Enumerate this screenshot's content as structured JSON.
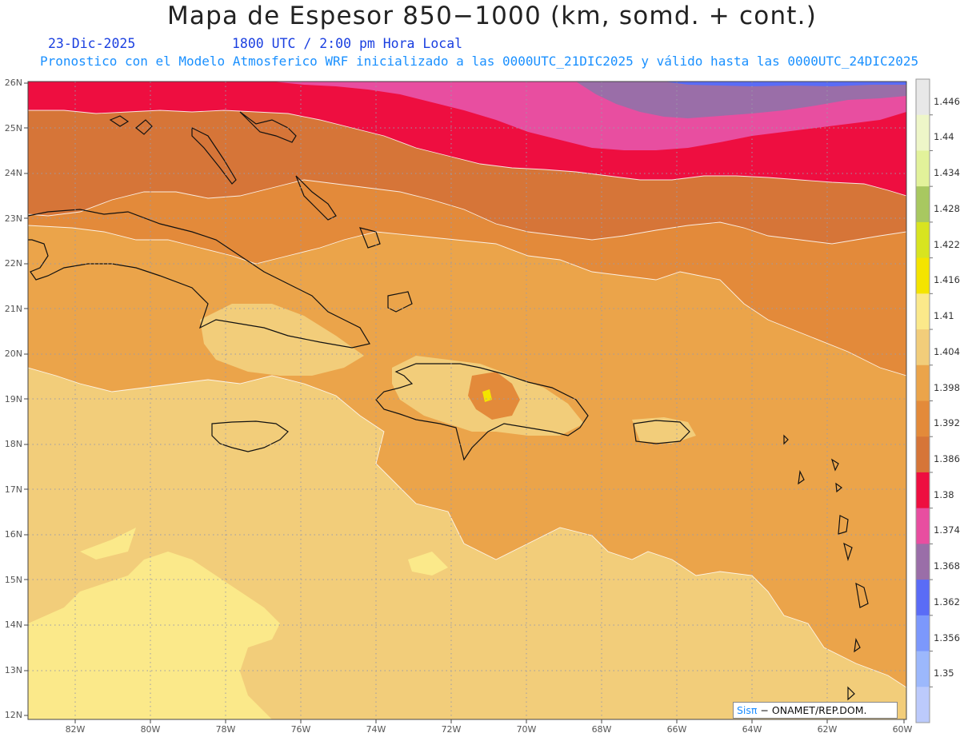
{
  "title": "Mapa de Espesor 850−1000 (km, somd. + cont.)",
  "date": "23-Dic-2025",
  "time": "1800 UTC / 2:00 pm Hora Local",
  "model": "Pronostico con el Modelo Atmosferico WRF inicializado a las 0000UTC_21DIC2025 y válido hasta las  0000UTC_24DIC2025",
  "credit": {
    "brand": "Sisπ",
    "rest": "− ONAMET/REP.DOM."
  },
  "latitudes": [
    "26N",
    "25N",
    "24N",
    "23N",
    "22N",
    "21N",
    "20N",
    "19N",
    "18N",
    "17N",
    "16N",
    "15N",
    "14N",
    "13N",
    "12N"
  ],
  "longitudes": [
    "82W",
    "80W",
    "78W",
    "76W",
    "74W",
    "72W",
    "70W",
    "68W",
    "66W",
    "64W",
    "62W",
    "60W"
  ],
  "colorbar": {
    "labels": [
      "1.446",
      "1.44",
      "1.434",
      "1.428",
      "1.422",
      "1.416",
      "1.41",
      "1.404",
      "1.398",
      "1.392",
      "1.386",
      "1.38",
      "1.374",
      "1.368",
      "1.362",
      "1.356",
      "1.35"
    ],
    "colors": [
      "#e8e8e8",
      "#eef6c8",
      "#e2f29a",
      "#a8c860",
      "#d8e420",
      "#f4e400",
      "#fbe98a",
      "#f2cd7a",
      "#eba44a",
      "#e38a3a",
      "#d67538",
      "#ee0e40",
      "#e84ea0",
      "#9a6ea8",
      "#5a6cf6",
      "#7c98fc",
      "#9cb8fc",
      "#bccafc"
    ]
  },
  "shading": {
    "mauve": "#9a6ea8",
    "pink": "#e84ea0",
    "red": "#ee0e40",
    "dark_orange": "#d67538",
    "orange": "#e38a3a",
    "light_orange": "#eba44a",
    "tan": "#f2cd7a",
    "yellow": "#fbe98a",
    "blue": "#5a6cf6"
  }
}
